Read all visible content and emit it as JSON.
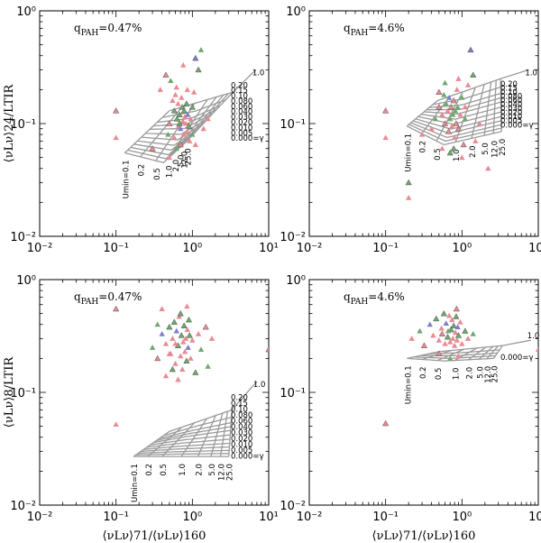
{
  "chart_data": [
    {
      "type": "scatter",
      "panel": "top-left",
      "annotation": "q",
      "annotation_sub": "PAH",
      "annotation_value": "=0.47%",
      "ylabel": "⟨νLν⟩24/LTIR",
      "xlabel": "",
      "xlim": [
        0.01,
        10
      ],
      "ylim": [
        0.01,
        1
      ],
      "xscale": "log",
      "yscale": "log",
      "x_ticks": [
        "10⁻²",
        "10⁻¹",
        "10⁰",
        "10¹"
      ],
      "y_ticks": [
        "10⁻²",
        "10⁻¹",
        "10⁰"
      ],
      "gamma_labels": [
        "1.0",
        "0.20",
        "0.15",
        "0.10",
        "0.080",
        "0.060",
        "0.040",
        "0.030",
        "0.020",
        "0.010",
        "0.005",
        "0.000=γ"
      ],
      "umin_labels": [
        "Umin=0.1",
        "0.2",
        "0.5",
        "1.0",
        "2.0",
        "5.0",
        "12.0",
        "25.0"
      ],
      "model_grid": {
        "umin_pos": [
          0,
          0.2,
          0.4,
          0.6,
          0.74,
          0.85,
          0.93,
          1.0
        ],
        "gamma_pos": [
          0,
          0.1,
          0.2,
          0.28,
          0.36,
          0.46,
          0.56,
          0.66,
          0.75,
          0.84,
          0.92,
          1.0
        ],
        "corners": {
          "ll": [
            0.13,
            0.055
          ],
          "lr": [
            0.42,
            0.045
          ],
          "ur": [
            0.85,
            0.07
          ],
          "tl": [
            0.5,
            0.13
          ],
          "tr": [
            3.4,
            0.19
          ],
          "end": [
            6.8,
            0.3
          ]
        }
      },
      "points": [
        [
          0.1,
          0.13
        ],
        [
          0.1,
          0.075
        ],
        [
          0.38,
          0.2
        ],
        [
          0.45,
          0.27
        ],
        [
          0.52,
          0.24
        ],
        [
          0.55,
          0.16
        ],
        [
          0.58,
          0.13
        ],
        [
          0.6,
          0.18
        ],
        [
          0.62,
          0.21
        ],
        [
          0.63,
          0.11
        ],
        [
          0.65,
          0.15
        ],
        [
          0.66,
          0.095
        ],
        [
          0.68,
          0.12
        ],
        [
          0.7,
          0.09
        ],
        [
          0.72,
          0.17
        ],
        [
          0.74,
          0.14
        ],
        [
          0.75,
          0.105
        ],
        [
          0.77,
          0.08
        ],
        [
          0.78,
          0.13
        ],
        [
          0.8,
          0.115
        ],
        [
          0.82,
          0.1
        ],
        [
          0.84,
          0.15
        ],
        [
          0.85,
          0.085
        ],
        [
          0.87,
          0.12
        ],
        [
          0.9,
          0.095
        ],
        [
          0.92,
          0.07
        ],
        [
          0.95,
          0.11
        ],
        [
          1.0,
          0.14
        ],
        [
          1.05,
          0.19
        ],
        [
          1.1,
          0.065
        ],
        [
          1.2,
          0.3
        ],
        [
          1.3,
          0.45
        ],
        [
          1.4,
          0.09
        ],
        [
          0.5,
          0.1
        ],
        [
          0.48,
          0.08
        ],
        [
          0.58,
          0.075
        ],
        [
          0.7,
          0.065
        ],
        [
          1.0,
          0.08
        ],
        [
          0.86,
          0.2
        ],
        [
          0.3,
          0.06
        ],
        [
          1.6,
          0.11
        ],
        [
          0.62,
          0.06
        ],
        [
          1.1,
          0.38
        ],
        [
          0.76,
          0.33
        ],
        [
          0.5,
          0.05
        ],
        [
          0.68,
          0.1
        ]
      ],
      "point_colors": [
        "#e88a92",
        "#e88a92",
        "#e88a92",
        "#e88a92",
        "#6fa86f",
        "#e88a92",
        "#6fa86f",
        "#e88a92",
        "#e88a92",
        "#6fa86f",
        "#e88a92",
        "#e88a92",
        "#6fa86f",
        "#7d7dc8",
        "#e88a92",
        "#6fa86f",
        "#e88a92",
        "#e88a92",
        "#6fa86f",
        "#e88a92",
        "#e88a92",
        "#6fa86f",
        "#e88a92",
        "#7d7dc8",
        "#6fa86f",
        "#e88a92",
        "#e88a92",
        "#6fa86f",
        "#e88a92",
        "#e88a92",
        "#6fa86f",
        "#6fa86f",
        "#e88a92",
        "#e88a92",
        "#6fa86f",
        "#e88a92",
        "#e88a92",
        "#6fa86f",
        "#e88a92",
        "#e88a92",
        "#e88a92",
        "#6fa86f",
        "#7d7dc8",
        "#e88a92",
        "#e88a92",
        "#6fa86f"
      ]
    },
    {
      "type": "scatter",
      "panel": "top-right",
      "annotation": "q",
      "annotation_sub": "PAH",
      "annotation_value": "=4.6%",
      "ylabel": "",
      "xlabel": "",
      "xlim": [
        0.01,
        10
      ],
      "ylim": [
        0.01,
        1
      ],
      "xscale": "log",
      "yscale": "log",
      "x_ticks": [
        "10⁻²",
        "10⁻¹",
        "10⁰",
        "10¹"
      ],
      "y_ticks": [
        "10⁻²",
        "10⁻¹",
        "10⁰"
      ],
      "gamma_labels": [
        "1.0",
        "0.20",
        "0.15",
        "0.10",
        "0.080",
        "0.060",
        "0.040",
        "0.030",
        "0.020",
        "0.010",
        "0.005",
        "0.000=γ"
      ],
      "umin_labels": [
        "Umin=0.1",
        "0.2",
        "0.5",
        "1.0",
        "2.0",
        "5.0",
        "12.0",
        "25.0"
      ],
      "model_grid": {
        "umin_pos": [
          0,
          0.2,
          0.4,
          0.6,
          0.74,
          0.85,
          0.93,
          1.0
        ],
        "gamma_pos": [
          0,
          0.1,
          0.2,
          0.28,
          0.36,
          0.46,
          0.56,
          0.66,
          0.75,
          0.84,
          0.92,
          1.0
        ],
        "corners": {
          "ll": [
            0.19,
            0.095
          ],
          "lr": [
            0.58,
            0.065
          ],
          "ur": [
            3.3,
            0.085
          ],
          "tl": [
            0.48,
            0.16
          ],
          "tr": [
            3.2,
            0.25
          ],
          "end": [
            7.5,
            0.3
          ]
        }
      },
      "points": [
        [
          0.1,
          0.13
        ],
        [
          0.1,
          0.075
        ],
        [
          0.2,
          0.022
        ],
        [
          0.2,
          0.03
        ],
        [
          0.4,
          0.09
        ],
        [
          0.45,
          0.11
        ],
        [
          0.5,
          0.14
        ],
        [
          0.55,
          0.12
        ],
        [
          0.58,
          0.18
        ],
        [
          0.6,
          0.1
        ],
        [
          0.62,
          0.15
        ],
        [
          0.65,
          0.13
        ],
        [
          0.67,
          0.085
        ],
        [
          0.68,
          0.17
        ],
        [
          0.7,
          0.11
        ],
        [
          0.72,
          0.14
        ],
        [
          0.74,
          0.095
        ],
        [
          0.76,
          0.12
        ],
        [
          0.78,
          0.16
        ],
        [
          0.8,
          0.075
        ],
        [
          0.82,
          0.13
        ],
        [
          0.84,
          0.1
        ],
        [
          0.86,
          0.2
        ],
        [
          0.88,
          0.14
        ],
        [
          0.9,
          0.09
        ],
        [
          0.95,
          0.12
        ],
        [
          1.0,
          0.17
        ],
        [
          1.05,
          0.065
        ],
        [
          1.1,
          0.11
        ],
        [
          1.2,
          0.22
        ],
        [
          1.3,
          0.45
        ],
        [
          1.5,
          0.07
        ],
        [
          0.55,
          0.06
        ],
        [
          0.7,
          0.055
        ],
        [
          1.0,
          0.05
        ],
        [
          0.3,
          0.08
        ],
        [
          1.4,
          0.27
        ],
        [
          0.9,
          0.25
        ],
        [
          0.6,
          0.23
        ],
        [
          0.5,
          0.19
        ],
        [
          1.7,
          0.1
        ],
        [
          2.2,
          0.04
        ],
        [
          0.78,
          0.06
        ],
        [
          1.1,
          0.14
        ]
      ],
      "point_colors": [
        "#e88a92",
        "#e88a92",
        "#e88a92",
        "#6fa86f",
        "#e88a92",
        "#6fa86f",
        "#e88a92",
        "#e88a92",
        "#6fa86f",
        "#e88a92",
        "#6fa86f",
        "#e88a92",
        "#e88a92",
        "#7d7dc8",
        "#6fa86f",
        "#e88a92",
        "#e88a92",
        "#6fa86f",
        "#e88a92",
        "#e88a92",
        "#6fa86f",
        "#e88a92",
        "#e88a92",
        "#6fa86f",
        "#e88a92",
        "#e88a92",
        "#6fa86f",
        "#e88a92",
        "#6fa86f",
        "#e88a92",
        "#7d7dc8",
        "#e88a92",
        "#e88a92",
        "#6fa86f",
        "#e88a92",
        "#e88a92",
        "#6fa86f",
        "#e88a92",
        "#6fa86f",
        "#e88a92",
        "#e88a92",
        "#e88a92",
        "#6fa86f",
        "#e88a92"
      ]
    },
    {
      "type": "scatter",
      "panel": "bottom-left",
      "annotation": "q",
      "annotation_sub": "PAH",
      "annotation_value": "=0.47%",
      "ylabel": "⟨νLν⟩8/LTIR",
      "xlabel": "⟨νLν⟩71/⟨νLν⟩160",
      "xlim": [
        0.01,
        10
      ],
      "ylim": [
        0.01,
        1
      ],
      "xscale": "log",
      "yscale": "log",
      "x_ticks": [
        "10⁻²",
        "10⁻¹",
        "10⁰",
        "10¹"
      ],
      "y_ticks": [
        "10⁻²",
        "10⁻¹",
        "10⁰"
      ],
      "gamma_labels": [
        "1.0",
        "0.20",
        "0.15",
        "0.10",
        "0.080",
        "0.060",
        "0.040",
        "0.030",
        "0.020",
        "0.010",
        "0.005",
        "0.000=γ"
      ],
      "umin_labels": [
        "Umin=0.1",
        "0.2",
        "0.5",
        "1.0",
        "2.0",
        "5.0",
        "12.0",
        "25.0"
      ],
      "model_grid": {
        "umin_pos": [
          0,
          0.2,
          0.4,
          0.6,
          0.74,
          0.85,
          0.93,
          1.0
        ],
        "gamma_pos": [
          0,
          0.1,
          0.2,
          0.28,
          0.36,
          0.46,
          0.56,
          0.66,
          0.75,
          0.84,
          0.92,
          1.0
        ],
        "corners": {
          "ll": [
            0.17,
            0.027
          ],
          "lr": [
            0.5,
            0.027
          ],
          "ur": [
            3.0,
            0.027
          ],
          "tl": [
            0.5,
            0.045
          ],
          "tr": [
            3.3,
            0.07
          ],
          "end": [
            7.0,
            0.125
          ]
        }
      },
      "points": [
        [
          0.1,
          0.55
        ],
        [
          0.1,
          0.052
        ],
        [
          0.3,
          0.25
        ],
        [
          0.35,
          0.2
        ],
        [
          0.4,
          0.33
        ],
        [
          0.45,
          0.27
        ],
        [
          0.5,
          0.38
        ],
        [
          0.52,
          0.22
        ],
        [
          0.55,
          0.3
        ],
        [
          0.58,
          0.42
        ],
        [
          0.6,
          0.18
        ],
        [
          0.62,
          0.35
        ],
        [
          0.65,
          0.26
        ],
        [
          0.67,
          0.47
        ],
        [
          0.7,
          0.21
        ],
        [
          0.72,
          0.32
        ],
        [
          0.74,
          0.16
        ],
        [
          0.76,
          0.28
        ],
        [
          0.78,
          0.39
        ],
        [
          0.8,
          0.23
        ],
        [
          0.82,
          0.3
        ],
        [
          0.84,
          0.19
        ],
        [
          0.86,
          0.36
        ],
        [
          0.88,
          0.25
        ],
        [
          0.9,
          0.44
        ],
        [
          0.95,
          0.2
        ],
        [
          1.0,
          0.29
        ],
        [
          1.1,
          0.15
        ],
        [
          1.2,
          0.33
        ],
        [
          1.3,
          0.24
        ],
        [
          1.5,
          0.38
        ],
        [
          1.6,
          0.17
        ],
        [
          0.45,
          0.14
        ],
        [
          0.55,
          0.16
        ],
        [
          0.65,
          0.13
        ],
        [
          0.4,
          0.55
        ],
        [
          0.7,
          0.5
        ],
        [
          0.85,
          0.58
        ],
        [
          1.8,
          0.3
        ],
        [
          10,
          0.24
        ],
        [
          0.35,
          0.4
        ],
        [
          0.6,
          0.27
        ],
        [
          0.92,
          0.32
        ],
        [
          0.5,
          0.22
        ]
      ],
      "point_colors": [
        "#e88a92",
        "#e88a92",
        "#6fa86f",
        "#e88a92",
        "#7d7dc8",
        "#e88a92",
        "#6fa86f",
        "#e88a92",
        "#e88a92",
        "#6fa86f",
        "#e88a92",
        "#7d7dc8",
        "#6fa86f",
        "#e88a92",
        "#e88a92",
        "#6fa86f",
        "#e88a92",
        "#e88a92",
        "#6fa86f",
        "#e88a92",
        "#e88a92",
        "#6fa86f",
        "#e88a92",
        "#7d7dc8",
        "#6fa86f",
        "#e88a92",
        "#e88a92",
        "#6fa86f",
        "#e88a92",
        "#6fa86f",
        "#e88a92",
        "#6fa86f",
        "#e88a92",
        "#6fa86f",
        "#e88a92",
        "#e88a92",
        "#6fa86f",
        "#e88a92",
        "#e88a92",
        "#e88a92",
        "#6fa86f",
        "#e88a92",
        "#6fa86f",
        "#e88a92"
      ]
    },
    {
      "type": "scatter",
      "panel": "bottom-right",
      "annotation": "q",
      "annotation_sub": "PAH",
      "annotation_value": "=4.6%",
      "ylabel": "",
      "xlabel": "⟨νLν⟩71/⟨νLν⟩160",
      "xlim": [
        0.01,
        10
      ],
      "ylim": [
        0.01,
        1
      ],
      "xscale": "log",
      "yscale": "log",
      "x_ticks": [
        "10⁻²",
        "10⁻¹",
        "10⁰",
        "10¹"
      ],
      "y_ticks": [
        "10⁻²",
        "10⁻¹",
        "10⁰"
      ],
      "gamma_labels": [
        "1.0",
        "0.000=γ"
      ],
      "umin_labels": [
        "Umin=0.1",
        "0.2",
        "0.5",
        "1.0",
        "2.0",
        "5.0",
        "12.0",
        "25.0"
      ],
      "model_grid": {
        "umin_pos": [
          0,
          0.2,
          0.4,
          0.6,
          0.74,
          0.85,
          0.93,
          1.0
        ],
        "gamma_pos": [
          0,
          0.25,
          0.5,
          0.75,
          1.0
        ],
        "corners": {
          "ll": [
            0.19,
            0.2
          ],
          "lr": [
            0.6,
            0.19
          ],
          "ur": [
            2.6,
            0.2
          ],
          "tl": [
            0.5,
            0.23
          ],
          "tr": [
            3.4,
            0.26
          ],
          "end": [
            8.0,
            0.29
          ]
        }
      },
      "points": [
        [
          0.1,
          0.053
        ],
        [
          0.22,
          0.3
        ],
        [
          0.28,
          0.35
        ],
        [
          0.32,
          0.26
        ],
        [
          0.38,
          0.4
        ],
        [
          0.42,
          0.32
        ],
        [
          0.46,
          0.45
        ],
        [
          0.5,
          0.29
        ],
        [
          0.54,
          0.37
        ],
        [
          0.58,
          0.5
        ],
        [
          0.6,
          0.27
        ],
        [
          0.62,
          0.41
        ],
        [
          0.65,
          0.31
        ],
        [
          0.68,
          0.48
        ],
        [
          0.7,
          0.28
        ],
        [
          0.72,
          0.36
        ],
        [
          0.74,
          0.44
        ],
        [
          0.76,
          0.3
        ],
        [
          0.78,
          0.39
        ],
        [
          0.8,
          0.26
        ],
        [
          0.82,
          0.34
        ],
        [
          0.84,
          0.47
        ],
        [
          0.86,
          0.29
        ],
        [
          0.88,
          0.38
        ],
        [
          0.9,
          0.32
        ],
        [
          0.95,
          0.42
        ],
        [
          1.0,
          0.27
        ],
        [
          1.1,
          0.35
        ],
        [
          1.2,
          0.3
        ],
        [
          1.4,
          0.33
        ],
        [
          0.5,
          0.22
        ],
        [
          0.7,
          0.2
        ],
        [
          0.9,
          0.21
        ],
        [
          0.85,
          0.55
        ],
        [
          10,
          0.24
        ],
        [
          0.66,
          0.35
        ],
        [
          0.55,
          0.33
        ]
      ],
      "point_colors": [
        "#e88a92",
        "#e88a92",
        "#6fa86f",
        "#e88a92",
        "#7d7dc8",
        "#e88a92",
        "#6fa86f",
        "#e88a92",
        "#e88a92",
        "#6fa86f",
        "#e88a92",
        "#7d7dc8",
        "#6fa86f",
        "#e88a92",
        "#e88a92",
        "#6fa86f",
        "#e88a92",
        "#e88a92",
        "#6fa86f",
        "#e88a92",
        "#e88a92",
        "#6fa86f",
        "#e88a92",
        "#7d7dc8",
        "#6fa86f",
        "#e88a92",
        "#e88a92",
        "#6fa86f",
        "#e88a92",
        "#6fa86f",
        "#e88a92",
        "#6fa86f",
        "#e88a92",
        "#e88a92",
        "#e88a92",
        "#6fa86f",
        "#e88a92"
      ]
    }
  ]
}
